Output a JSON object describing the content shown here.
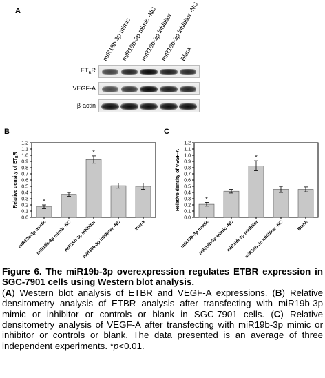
{
  "panel_a": {
    "letter": "A",
    "lanes": [
      "miR19b-3p mimic",
      "miR19b-3p mimic -NC",
      "miR19b-3p inhibitor",
      "miR19b-3p inhibitor -NC",
      "Blank"
    ],
    "rows": [
      {
        "label_main": "ET",
        "label_sub": "B",
        "label_tail": "R",
        "intensities": [
          0.6,
          0.8,
          1.0,
          0.85,
          0.78
        ]
      },
      {
        "label": "VEGF-A",
        "intensities": [
          0.55,
          0.7,
          1.0,
          0.85,
          0.8
        ]
      },
      {
        "label": "β-actin",
        "intensities": [
          0.95,
          0.95,
          0.95,
          0.95,
          0.95
        ]
      }
    ]
  },
  "chart_data": [
    {
      "type": "bar",
      "letter": "B",
      "categories": [
        "miR19b-3p mimic",
        "miR19b-3p mimic -NC",
        "miR19b-3p inhibitor",
        "miR19b-3p inhibitor -NC",
        "Blank"
      ],
      "values": [
        0.17,
        0.37,
        0.93,
        0.51,
        0.5
      ],
      "errors": [
        0.03,
        0.03,
        0.06,
        0.04,
        0.05
      ],
      "significant": [
        true,
        false,
        true,
        false,
        false
      ],
      "significance_mark": "*",
      "ylabel_main": "Relative density of ET",
      "ylabel_sub": "B",
      "ylabel_tail": "R",
      "ylim": [
        0,
        1.2
      ],
      "yticks": [
        "0.0",
        "0.1",
        "0.2",
        "0.3",
        "0.4",
        "0.5",
        "0.6",
        "0.7",
        "0.8",
        "0.9",
        "1.0",
        "1.1",
        "1.2"
      ],
      "bar_color": "#c8c8c8"
    },
    {
      "type": "bar",
      "letter": "C",
      "categories": [
        "miR19b-3p mimic",
        "miR19b-3p mimic -NC",
        "miR19b-3p inhibitor",
        "miR19b-3p inhibitor -NC",
        "Blank"
      ],
      "values": [
        0.21,
        0.42,
        0.83,
        0.45,
        0.45
      ],
      "errors": [
        0.03,
        0.03,
        0.08,
        0.05,
        0.04
      ],
      "significant": [
        true,
        false,
        true,
        false,
        false
      ],
      "significance_mark": "*",
      "ylabel_main": "Relative density of VEGF-A",
      "ylim": [
        0,
        1.2
      ],
      "yticks": [
        "0.0",
        "0.1",
        "0.2",
        "0.3",
        "0.4",
        "0.5",
        "0.6",
        "0.7",
        "0.8",
        "0.9",
        "1.0",
        "1.1",
        "1.2"
      ],
      "bar_color": "#c8c8c8"
    }
  ],
  "caption": {
    "title": "Figure 6. The miR19b-3p overexpression regulates ETBR expression in SGC-7901 cells using Western blot analysis.",
    "part_a_letter": "A",
    "part_a_text": " Western blot analysis of ETBR and VEGF-A expressions. ",
    "part_b_letter": "B",
    "part_b_text": " Relative densitometry analysis of ETBR analysis after transfecting with miR19b-3p mimic or inhibitor or controls or blank in SGC-7901 cells. ",
    "part_c_letter": "C",
    "part_c_text": " Relative densitometry analysis of VEGF-A after transfecting with miR19b-3p mimic or inhibitor or controls or blank. The data presented is an average of three independent experiments.",
    "footnote_mark": "*",
    "footnote_p": "p",
    "footnote_text": "<0.01."
  }
}
